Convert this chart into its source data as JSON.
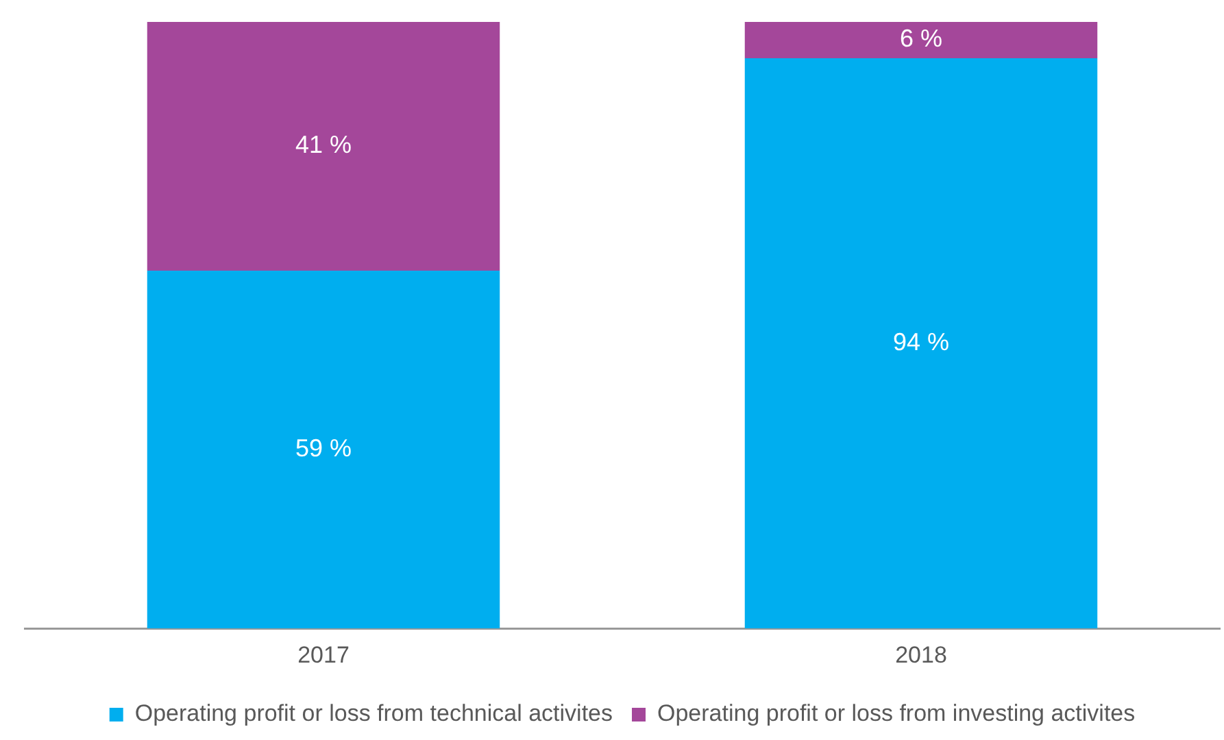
{
  "chart_data": {
    "type": "bar",
    "stacked": true,
    "legend": "bottom",
    "grid": false,
    "categories": [
      "2017",
      "2018"
    ],
    "series": [
      {
        "name": "Operating profit or loss from technical activites",
        "color": "#00aeef",
        "values": [
          59,
          94
        ],
        "value_labels": [
          "59 %",
          "94 %"
        ]
      },
      {
        "name": "Operating profit or loss from investing activites",
        "color": "#a4479a",
        "values": [
          41,
          6
        ],
        "value_labels": [
          "41 %",
          "6 %"
        ]
      }
    ]
  }
}
